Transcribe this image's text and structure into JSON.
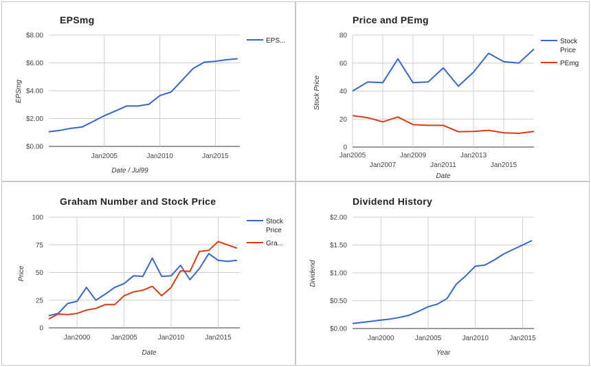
{
  "chart_data": [
    {
      "type": "line",
      "title": "EPSmg",
      "xlabel": "Date / Jul99",
      "ylabel": "EPSmg",
      "x_ticks": [
        "Jan2005",
        "Jan2010",
        "Jan2015"
      ],
      "x_tick_values": [
        2005,
        2010,
        2015
      ],
      "y_ticks": [
        "$0.00",
        "$2.00",
        "$4.00",
        "$6.00",
        "$8.00"
      ],
      "y_tick_values": [
        0,
        2,
        4,
        6,
        8
      ],
      "xlim": [
        2000,
        2017.2
      ],
      "ylim": [
        0,
        8
      ],
      "grid": true,
      "legend_position": "right",
      "series": [
        {
          "name": "EPS...",
          "color": "#3366cc",
          "x": [
            2000,
            2001,
            2002,
            2003,
            2004,
            2005,
            2006,
            2007,
            2008,
            2009,
            2010,
            2011,
            2012,
            2013,
            2014,
            2015,
            2016,
            2017
          ],
          "values": [
            1.05,
            1.15,
            1.3,
            1.4,
            1.8,
            2.2,
            2.55,
            2.9,
            2.9,
            3.02,
            3.65,
            3.9,
            4.75,
            5.6,
            6.05,
            6.12,
            6.22,
            6.3
          ]
        }
      ]
    },
    {
      "type": "line",
      "title": "Price and PEmg",
      "xlabel": "Date",
      "ylabel": "Stock Price",
      "x_ticks_top": [
        "Jan2005",
        "Jan2009",
        "Jan2013"
      ],
      "x_tick_values_top": [
        2005,
        2009,
        2013
      ],
      "x_ticks_bottom": [
        "Jan2007",
        "Jan2011",
        "Jan2015"
      ],
      "x_tick_values_bottom": [
        2007,
        2011,
        2015
      ],
      "y_ticks": [
        "0",
        "20",
        "40",
        "60",
        "80"
      ],
      "y_tick_values": [
        0,
        20,
        40,
        60,
        80
      ],
      "xlim": [
        2005,
        2017
      ],
      "ylim": [
        0,
        80
      ],
      "grid": true,
      "legend_position": "right",
      "series": [
        {
          "name": "Stock Price",
          "color": "#3366cc",
          "x": [
            2005,
            2006,
            2007,
            2008,
            2009,
            2010,
            2011,
            2012,
            2013,
            2014,
            2015,
            2016,
            2017
          ],
          "values": [
            40,
            46.5,
            46,
            63,
            46,
            46.5,
            56.5,
            43.5,
            53.5,
            67,
            61,
            60,
            70
          ]
        },
        {
          "name": "PEmg",
          "color": "#dc3912",
          "x": [
            2005,
            2006,
            2007,
            2008,
            2009,
            2010,
            2011,
            2012,
            2013,
            2014,
            2015,
            2016,
            2017
          ],
          "values": [
            22.5,
            21,
            18,
            21.5,
            16,
            15.5,
            15.5,
            11,
            11.2,
            12,
            10.2,
            9.8,
            11.2
          ]
        }
      ]
    },
    {
      "type": "line",
      "title": "Graham Number and Stock Price",
      "xlabel": "Date",
      "ylabel": "Price",
      "x_ticks": [
        "Jan2000",
        "Jan2005",
        "Jan2010",
        "Jan2015"
      ],
      "x_tick_values": [
        2000,
        2005,
        2010,
        2015
      ],
      "y_ticks": [
        "0",
        "25",
        "50",
        "75",
        "100"
      ],
      "y_tick_values": [
        0,
        25,
        50,
        75,
        100
      ],
      "xlim": [
        1997,
        2017.3
      ],
      "ylim": [
        0,
        100
      ],
      "grid": true,
      "legend_position": "right",
      "series": [
        {
          "name": "Stock Price",
          "color": "#3366cc",
          "x": [
            1997,
            1998,
            1999,
            2000,
            2001,
            2002,
            2003,
            2004,
            2005,
            2006,
            2007,
            2008,
            2009,
            2010,
            2011,
            2012,
            2013,
            2014,
            2015,
            2016,
            2017
          ],
          "values": [
            11,
            13,
            22,
            24,
            36.5,
            25,
            30.5,
            36.5,
            40,
            47,
            46.5,
            63,
            46.5,
            47,
            56.5,
            43.5,
            53.5,
            67,
            61,
            60,
            61
          ]
        },
        {
          "name": "Gra...",
          "color": "#dc3912",
          "x": [
            1997,
            1998,
            1999,
            2000,
            2001,
            2002,
            2003,
            2004,
            2005,
            2006,
            2007,
            2008,
            2009,
            2010,
            2011,
            2012,
            2013,
            2014,
            2015,
            2016,
            2017
          ],
          "values": [
            8,
            12.5,
            12,
            13,
            16,
            17.5,
            21,
            21,
            29,
            32.5,
            34,
            37.5,
            29,
            36.5,
            51.5,
            51,
            69,
            70,
            78,
            75,
            72
          ]
        }
      ]
    },
    {
      "type": "line",
      "title": "Dividend History",
      "xlabel": "Year",
      "ylabel": "Dividend",
      "x_ticks": [
        "Jan2000",
        "Jan2005",
        "Jan2010",
        "Jan2015"
      ],
      "x_tick_values": [
        2000,
        2005,
        2010,
        2015
      ],
      "y_ticks": [
        "$0.00",
        "$0.50",
        "$1.00",
        "$1.50",
        "$2.00"
      ],
      "y_tick_values": [
        0,
        0.5,
        1.0,
        1.5,
        2.0
      ],
      "xlim": [
        1997,
        2016.2
      ],
      "ylim": [
        0,
        2.0
      ],
      "grid": true,
      "legend_position": "none",
      "series": [
        {
          "name": "",
          "color": "#3366cc",
          "x": [
            1997,
            1998,
            1999,
            2000,
            2001,
            2002,
            2003,
            2004,
            2005,
            2006,
            2007,
            2008,
            2009,
            2010,
            2011,
            2012,
            2013,
            2014,
            2015,
            2016
          ],
          "values": [
            0.09,
            0.11,
            0.13,
            0.15,
            0.17,
            0.2,
            0.24,
            0.31,
            0.39,
            0.44,
            0.54,
            0.8,
            0.95,
            1.12,
            1.14,
            1.23,
            1.34,
            1.42,
            1.5,
            1.58
          ]
        }
      ]
    }
  ]
}
